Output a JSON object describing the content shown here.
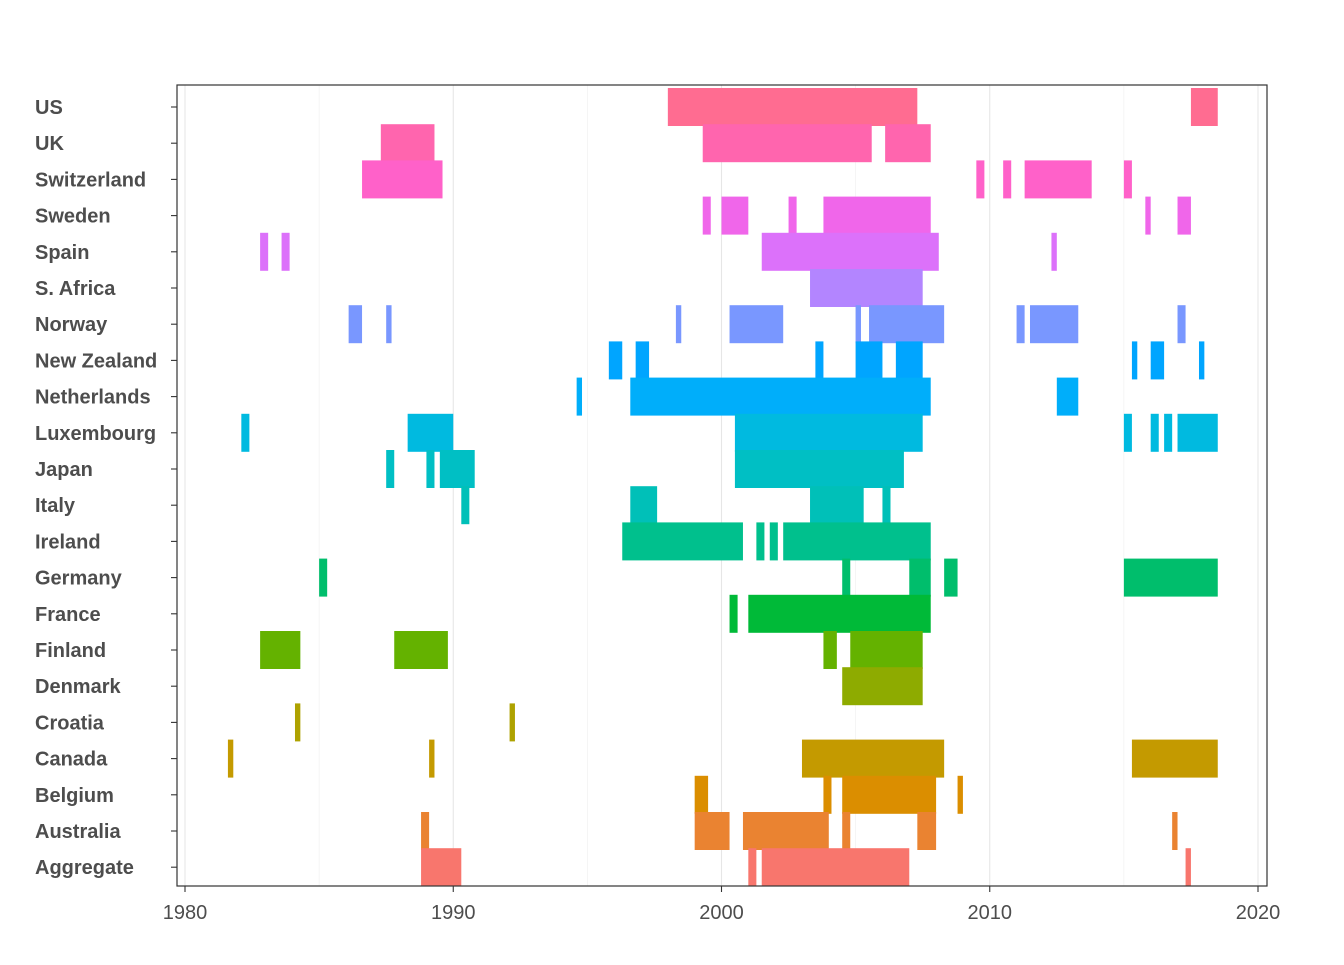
{
  "chart_data": {
    "type": "timeline",
    "title": "",
    "xlabel": "",
    "ylabel": "",
    "xlim": [
      1980,
      2020
    ],
    "x_ticks": [
      "1980",
      "1990",
      "2000",
      "2010",
      "2020"
    ],
    "grid": "vertical",
    "legend": "none",
    "series": [
      {
        "name": "US",
        "color": "#FF6C91",
        "intervals": [
          [
            1998.0,
            2007.3
          ],
          [
            2017.5,
            2018.5
          ]
        ]
      },
      {
        "name": "UK",
        "color": "#FF65AE",
        "intervals": [
          [
            1987.3,
            1989.3
          ],
          [
            1999.3,
            2005.6
          ],
          [
            2006.1,
            2007.8
          ]
        ]
      },
      {
        "name": "Switzerland",
        "color": "#FF61C9",
        "intervals": [
          [
            1986.6,
            1989.6
          ],
          [
            2009.5,
            2009.8
          ],
          [
            2010.5,
            2010.8
          ],
          [
            2011.3,
            2013.8
          ],
          [
            2015.0,
            2015.3
          ]
        ]
      },
      {
        "name": "Sweden",
        "color": "#F066EA",
        "intervals": [
          [
            1999.3,
            1999.6
          ],
          [
            2000.0,
            2001.0
          ],
          [
            2002.5,
            2002.8
          ],
          [
            2003.8,
            2007.8
          ],
          [
            2015.8,
            2016.0
          ],
          [
            2017.0,
            2017.5
          ]
        ]
      },
      {
        "name": "Spain",
        "color": "#DC71FA",
        "intervals": [
          [
            1982.8,
            1983.1
          ],
          [
            1983.6,
            1983.9
          ],
          [
            2001.5,
            2008.1
          ],
          [
            2012.3,
            2012.5
          ]
        ]
      },
      {
        "name": "S. Africa",
        "color": "#B385FF",
        "intervals": [
          [
            2003.3,
            2007.5
          ]
        ]
      },
      {
        "name": "Norway",
        "color": "#7997FF",
        "intervals": [
          [
            1986.1,
            1986.6
          ],
          [
            1987.5,
            1987.7
          ],
          [
            1998.3,
            1998.5
          ],
          [
            2000.3,
            2002.3
          ],
          [
            2005.0,
            2005.2
          ],
          [
            2005.5,
            2008.3
          ],
          [
            2011.0,
            2011.3
          ],
          [
            2011.5,
            2013.3
          ],
          [
            2017.0,
            2017.3
          ]
        ]
      },
      {
        "name": "New Zealand",
        "color": "#00A5FF",
        "intervals": [
          [
            1995.8,
            1996.3
          ],
          [
            1996.8,
            1997.3
          ],
          [
            2003.5,
            2003.8
          ],
          [
            2005.0,
            2006.0
          ],
          [
            2006.5,
            2007.5
          ],
          [
            2015.3,
            2015.5
          ],
          [
            2016.0,
            2016.5
          ],
          [
            2017.8,
            2018.0
          ]
        ]
      },
      {
        "name": "Netherlands",
        "color": "#00AEFA",
        "intervals": [
          [
            1994.6,
            1994.8
          ],
          [
            1996.6,
            2007.8
          ],
          [
            2012.5,
            2013.3
          ]
        ]
      },
      {
        "name": "Luxembourg",
        "color": "#00BAE0",
        "intervals": [
          [
            1982.1,
            1982.4
          ],
          [
            1988.3,
            1990.0
          ],
          [
            2000.5,
            2007.5
          ],
          [
            2015.0,
            2015.3
          ],
          [
            2016.0,
            2016.3
          ],
          [
            2016.5,
            2016.8
          ],
          [
            2017.0,
            2018.5
          ]
        ]
      },
      {
        "name": "Japan",
        "color": "#00BFC4",
        "intervals": [
          [
            1987.5,
            1987.8
          ],
          [
            1989.0,
            1989.3
          ],
          [
            1989.5,
            1990.8
          ],
          [
            2000.5,
            2006.8
          ]
        ]
      },
      {
        "name": "Italy",
        "color": "#00C0B8",
        "intervals": [
          [
            1990.3,
            1990.6
          ],
          [
            1996.6,
            1997.6
          ],
          [
            2003.3,
            2005.3
          ],
          [
            2006.0,
            2006.3
          ]
        ]
      },
      {
        "name": "Ireland",
        "color": "#00C08D",
        "intervals": [
          [
            1996.3,
            2000.8
          ],
          [
            2001.3,
            2001.6
          ],
          [
            2001.8,
            2002.1
          ],
          [
            2002.3,
            2007.8
          ]
        ]
      },
      {
        "name": "Germany",
        "color": "#00BE6C",
        "intervals": [
          [
            1985.0,
            1985.3
          ],
          [
            2004.5,
            2004.8
          ],
          [
            2007.0,
            2007.8
          ],
          [
            2008.3,
            2008.8
          ],
          [
            2015.0,
            2018.5
          ]
        ]
      },
      {
        "name": "France",
        "color": "#00BA38",
        "intervals": [
          [
            2000.3,
            2000.6
          ],
          [
            2001.0,
            2007.8
          ]
        ]
      },
      {
        "name": "Finland",
        "color": "#64B200",
        "intervals": [
          [
            1982.8,
            1984.3
          ],
          [
            1987.8,
            1989.8
          ],
          [
            2003.8,
            2004.3
          ],
          [
            2004.8,
            2007.5
          ]
        ]
      },
      {
        "name": "Denmark",
        "color": "#8EAB00",
        "intervals": [
          [
            2004.5,
            2007.5
          ]
        ]
      },
      {
        "name": "Croatia",
        "color": "#AEA200",
        "intervals": [
          [
            1984.1,
            1984.3
          ],
          [
            1992.1,
            1992.3
          ]
        ]
      },
      {
        "name": "Canada",
        "color": "#C49A00",
        "intervals": [
          [
            1981.6,
            1981.8
          ],
          [
            1989.1,
            1989.3
          ],
          [
            2003.0,
            2008.3
          ],
          [
            2015.3,
            2018.5
          ]
        ]
      },
      {
        "name": "Belgium",
        "color": "#DB8E00",
        "intervals": [
          [
            1999.0,
            1999.5
          ],
          [
            2003.8,
            2004.1
          ],
          [
            2004.5,
            2008.0
          ],
          [
            2008.8,
            2009.0
          ]
        ]
      },
      {
        "name": "Australia",
        "color": "#EA8331",
        "intervals": [
          [
            1988.8,
            1989.1
          ],
          [
            1999.0,
            2000.3
          ],
          [
            2000.8,
            2004.0
          ],
          [
            2004.5,
            2004.8
          ],
          [
            2007.3,
            2008.0
          ],
          [
            2016.8,
            2017.0
          ]
        ]
      },
      {
        "name": "Aggregate",
        "color": "#F8766D",
        "intervals": [
          [
            1988.8,
            1990.3
          ],
          [
            2001.0,
            2001.3
          ],
          [
            2001.5,
            2007.0
          ],
          [
            2017.3,
            2017.5
          ]
        ]
      }
    ]
  }
}
